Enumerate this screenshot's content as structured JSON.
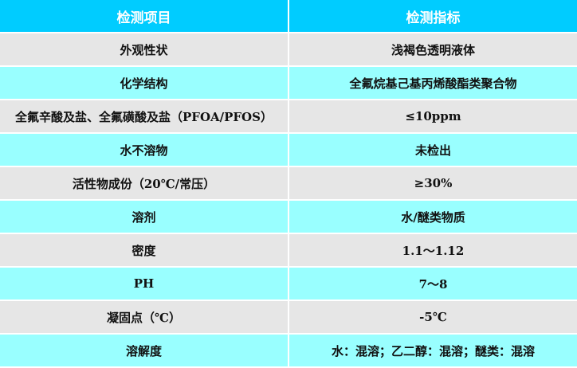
{
  "colors": {
    "header": "#00CCFF",
    "row_gray": "#E6E6E6",
    "row_cyan": "#99FFFF"
  },
  "table": {
    "headers": [
      "检测项目",
      "检测指标"
    ],
    "rows": [
      [
        "外观性状",
        "浅褐色透明液体"
      ],
      [
        "化学结构",
        "全氟烷基己基丙烯酸酯类聚合物"
      ],
      [
        "全氟辛酸及盐、全氟磺酸及盐（PFOA/PFOS）",
        "≤10ppm"
      ],
      [
        "水不溶物",
        "未检出"
      ],
      [
        "活性物成份（20℃/常压）",
        "≥30%"
      ],
      [
        "溶剂",
        "水/醚类物质"
      ],
      [
        "密度",
        "1.1～1.12"
      ],
      [
        "PH",
        "7～8"
      ],
      [
        "凝固点（℃）",
        "-5℃"
      ],
      [
        "溶解度",
        "水：混溶；乙二醇：混溶；醚类：混溶"
      ]
    ]
  }
}
